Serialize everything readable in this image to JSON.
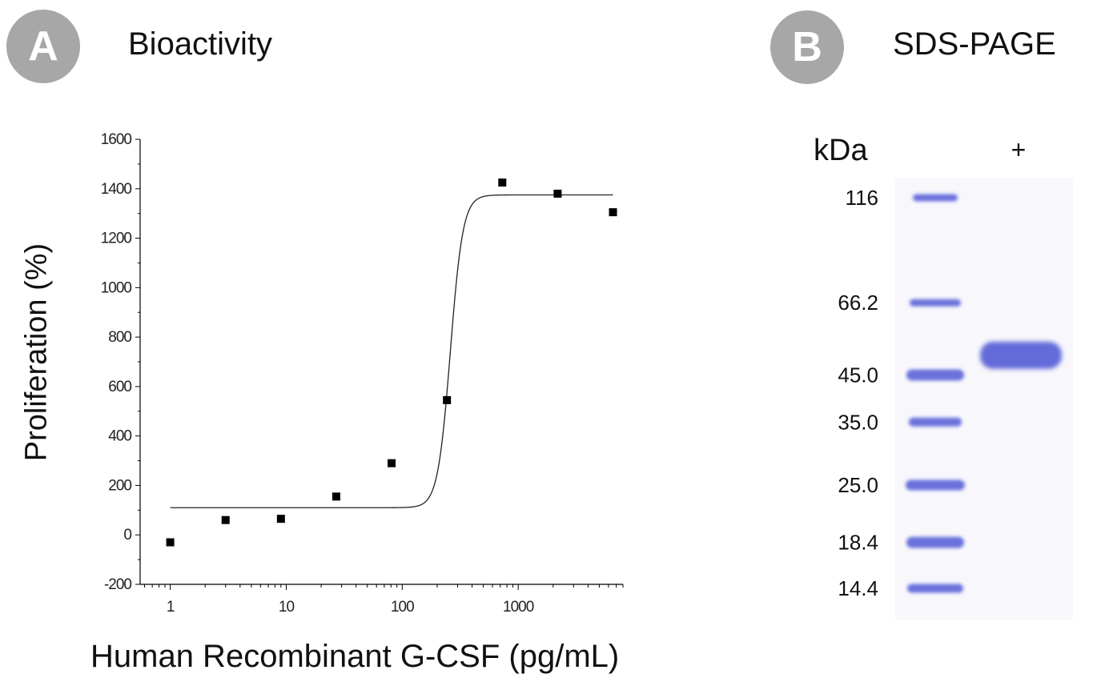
{
  "panel_a": {
    "badge": "A",
    "title": "Bioactivity"
  },
  "panel_b": {
    "badge": "B",
    "title": "SDS-PAGE",
    "unit_label": "kDa",
    "lane_label": "+",
    "ladder_markers": [
      "116",
      "66.2",
      "45.0",
      "35.0",
      "25.0",
      "18.4",
      "14.4"
    ],
    "ladder_kda": [
      116,
      66.2,
      45.0,
      35.0,
      25.0,
      18.4,
      14.4
    ],
    "sample_band_kda": 50,
    "band_color": "#5b63d8"
  },
  "chart_data": {
    "type": "scatter",
    "title": "Bioactivity",
    "xlabel": "Human Recombinant G-CSF (pg/mL)",
    "ylabel": "Proliferation (%)",
    "xscale": "log",
    "xlim": [
      0.55,
      8000
    ],
    "ylim": [
      -200,
      1600
    ],
    "xticks": [
      1,
      10,
      100,
      1000
    ],
    "xtick_labels": [
      "1",
      "10",
      "100",
      "1000"
    ],
    "yticks": [
      -200,
      0,
      200,
      400,
      600,
      800,
      1000,
      1200,
      1400,
      1600
    ],
    "ytick_labels": [
      "-200",
      "0",
      "200",
      "400",
      "600",
      "800",
      "1000",
      "1200",
      "1400",
      "1600"
    ],
    "points": {
      "x": [
        1,
        3,
        9,
        27,
        81,
        243,
        729,
        2187,
        6561
      ],
      "y": [
        -30,
        60,
        65,
        155,
        290,
        545,
        1425,
        1380,
        1305
      ]
    },
    "fit": {
      "model": "logistic",
      "bottom": 110,
      "top": 1375,
      "ec50": 260,
      "hill": 8,
      "x_range": [
        1,
        6561
      ]
    },
    "grid": false,
    "legend": "none"
  }
}
